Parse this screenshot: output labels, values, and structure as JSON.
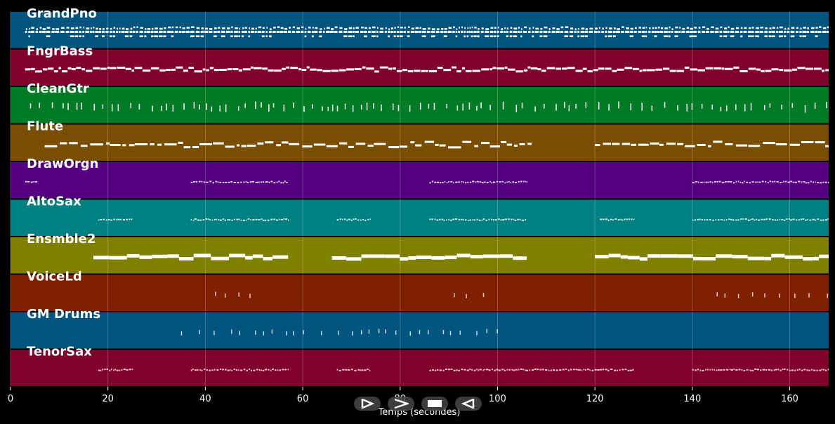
{
  "chart_data": {
    "type": "piano-roll",
    "xlabel": "Temps (secondes)",
    "xlim": [
      0,
      168
    ],
    "x_ticks": [
      0,
      20,
      40,
      60,
      80,
      100,
      120,
      140,
      160
    ],
    "grid": true,
    "tracks": [
      {
        "name": "GrandPno",
        "color": "#005580",
        "style": "dense-chords",
        "segments": [
          [
            3,
            168
          ]
        ]
      },
      {
        "name": "FngrBass",
        "color": "#80002e",
        "style": "bass-line",
        "segments": [
          [
            3,
            168
          ]
        ]
      },
      {
        "name": "CleanGtr",
        "color": "#007a24",
        "style": "ticks",
        "segments": [
          [
            4,
            168
          ]
        ]
      },
      {
        "name": "Flute",
        "color": "#7a4e00",
        "style": "melody",
        "segments": [
          [
            7,
            107
          ],
          [
            120,
            168
          ]
        ]
      },
      {
        "name": "DrawOrgn",
        "color": "#550080",
        "style": "thin",
        "segments": [
          [
            3,
            5.5
          ],
          [
            37,
            57
          ],
          [
            86,
            106
          ],
          [
            140,
            168
          ]
        ]
      },
      {
        "name": "AltoSax",
        "color": "#008080",
        "style": "thin",
        "segments": [
          [
            18,
            25
          ],
          [
            37,
            57
          ],
          [
            67,
            74
          ],
          [
            86,
            106
          ],
          [
            121,
            128
          ],
          [
            140,
            168
          ]
        ]
      },
      {
        "name": "Ensmble2",
        "color": "#808000",
        "style": "pads",
        "segments": [
          [
            17,
            57
          ],
          [
            66,
            106
          ],
          [
            120,
            168
          ]
        ]
      },
      {
        "name": "VoiceLd",
        "color": "#7f2000",
        "style": "sparse",
        "segments": [
          [
            42,
            50
          ],
          [
            91,
            99
          ],
          [
            145,
            168
          ]
        ]
      },
      {
        "name": "GM Drums",
        "color": "#005580",
        "style": "sparse",
        "segments": [
          [
            35,
            100
          ]
        ]
      },
      {
        "name": "TenorSax",
        "color": "#80002e",
        "style": "thin",
        "segments": [
          [
            18,
            25
          ],
          [
            37,
            57
          ],
          [
            67,
            74
          ],
          [
            86,
            106
          ],
          [
            106,
            121
          ],
          [
            121,
            128
          ],
          [
            140,
            168
          ]
        ]
      }
    ]
  }
}
